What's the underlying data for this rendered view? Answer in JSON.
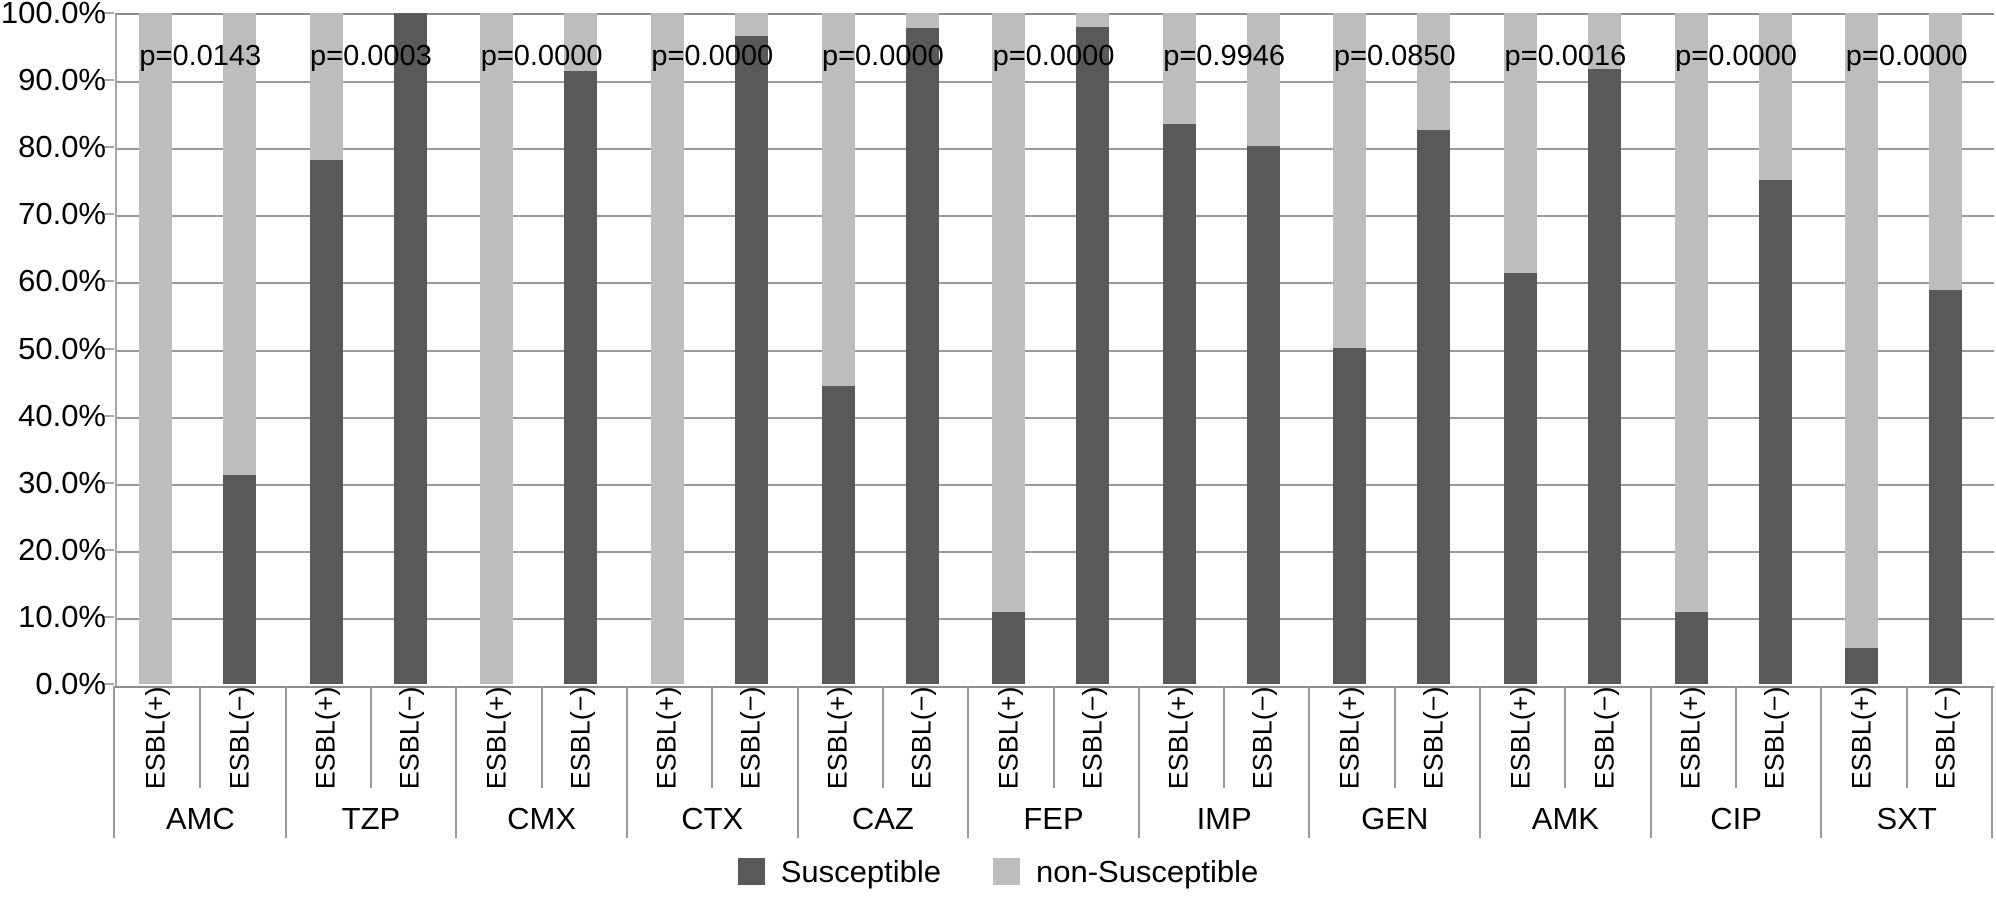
{
  "chart_data": {
    "type": "bar",
    "subtype": "stacked-100-percent",
    "title": "",
    "xlabel": "",
    "ylabel": "",
    "categories": [
      "AMC",
      "TZP",
      "CMX",
      "CTX",
      "CAZ",
      "FEP",
      "IMP",
      "GEN",
      "AMK",
      "CIP",
      "SXT"
    ],
    "bar_labels": [
      "ESBL(+)",
      "ESBL(−)"
    ],
    "series": [
      {
        "name": "Susceptible",
        "color": "#595959",
        "values_esbl_pos": [
          0.0,
          78.1,
          0.0,
          0.0,
          44.4,
          10.8,
          83.5,
          50.0,
          61.3,
          10.8,
          5.3
        ],
        "values_esbl_neg": [
          31.1,
          100.0,
          91.3,
          96.5,
          97.8,
          97.9,
          80.2,
          82.6,
          91.7,
          75.1,
          58.7
        ]
      },
      {
        "name": "non-Susceptible",
        "color": "#bdbdbd",
        "values_esbl_pos": [
          100.0,
          21.9,
          100.0,
          100.0,
          55.6,
          89.2,
          16.5,
          50.0,
          38.7,
          89.2,
          94.7
        ],
        "values_esbl_neg": [
          68.9,
          0.0,
          8.7,
          3.5,
          2.2,
          2.1,
          19.8,
          17.4,
          8.3,
          24.9,
          41.3
        ]
      }
    ],
    "p_values": [
      "p=0.0143",
      "p=0.0003",
      "p=0.0000",
      "p=0.0000",
      "p=0.0000",
      "p=0.0000",
      "p=0.9946",
      "p=0.0850",
      "p=0.0016",
      "p=0.0000",
      "p=0.0000"
    ],
    "y_axis": {
      "min": 0,
      "max": 100,
      "tick_step": 10,
      "tick_labels": [
        "100.0%",
        "90.0%",
        "80.0%",
        "70.0%",
        "60.0%",
        "50.0%",
        "40.0%",
        "30.0%",
        "20.0%",
        "10.0%",
        "0.0%"
      ]
    },
    "grid": true,
    "legend_position": "bottom",
    "legend": [
      {
        "label": "Susceptible",
        "color": "#595959"
      },
      {
        "label": "non-Susceptible",
        "color": "#bdbdbd"
      }
    ]
  },
  "colors": {
    "susceptible": "#595959",
    "non_susceptible": "#bdbdbd",
    "gridline": "#9a9a9a",
    "axis": "#8c8c8c",
    "text": "#000000",
    "background": "#ffffff"
  }
}
